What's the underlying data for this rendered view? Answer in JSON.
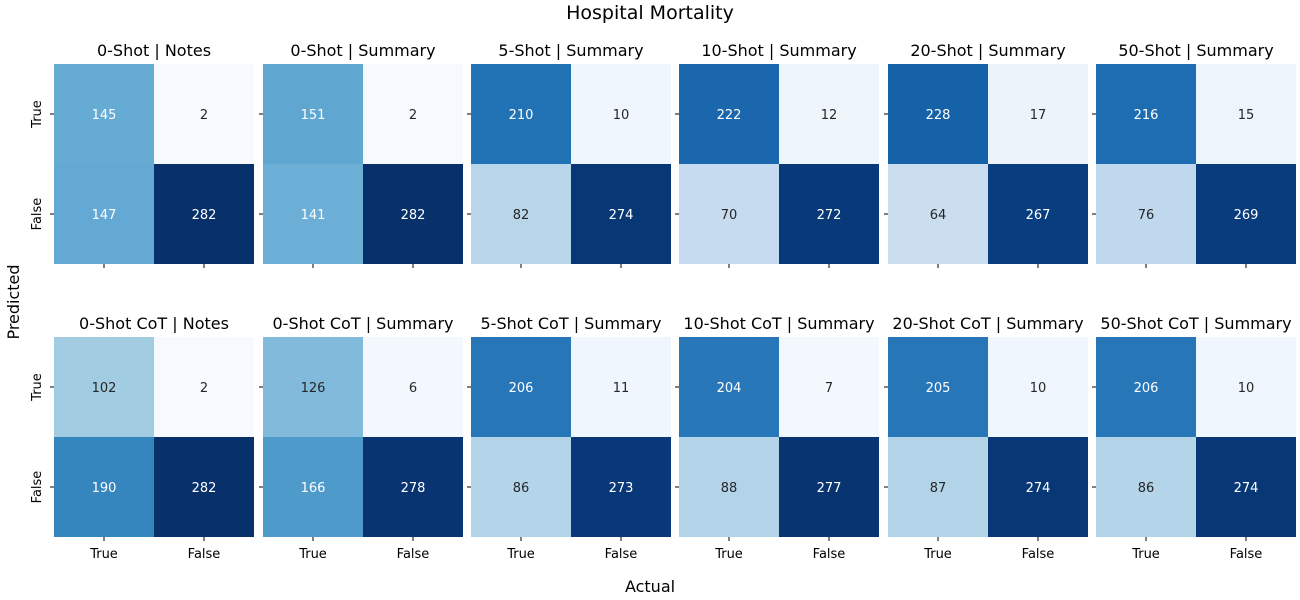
{
  "chart_data": {
    "type": "heatmap",
    "title": "Hospital Mortality",
    "xlabel": "Actual",
    "ylabel": "Predicted",
    "x_tick_labels": [
      "True",
      "False"
    ],
    "y_tick_labels": [
      "True",
      "False"
    ],
    "colormap": "Blues",
    "color_range": [
      0,
      282
    ],
    "grid": false,
    "legend": "none",
    "panels": [
      {
        "title": "0-Shot | Notes",
        "values": [
          [
            145,
            2
          ],
          [
            147,
            282
          ]
        ]
      },
      {
        "title": "0-Shot | Summary",
        "values": [
          [
            151,
            2
          ],
          [
            141,
            282
          ]
        ]
      },
      {
        "title": "5-Shot | Summary",
        "values": [
          [
            210,
            10
          ],
          [
            82,
            274
          ]
        ]
      },
      {
        "title": "10-Shot | Summary",
        "values": [
          [
            222,
            12
          ],
          [
            70,
            272
          ]
        ]
      },
      {
        "title": "20-Shot | Summary",
        "values": [
          [
            228,
            17
          ],
          [
            64,
            267
          ]
        ]
      },
      {
        "title": "50-Shot | Summary",
        "values": [
          [
            216,
            15
          ],
          [
            76,
            269
          ]
        ]
      },
      {
        "title": "0-Shot CoT | Notes",
        "values": [
          [
            102,
            2
          ],
          [
            190,
            282
          ]
        ]
      },
      {
        "title": "0-Shot CoT | Summary",
        "values": [
          [
            126,
            6
          ],
          [
            166,
            278
          ]
        ]
      },
      {
        "title": "5-Shot CoT | Summary",
        "values": [
          [
            206,
            11
          ],
          [
            86,
            273
          ]
        ]
      },
      {
        "title": "10-Shot CoT | Summary",
        "values": [
          [
            204,
            7
          ],
          [
            88,
            277
          ]
        ]
      },
      {
        "title": "20-Shot CoT | Summary",
        "values": [
          [
            205,
            10
          ],
          [
            87,
            274
          ]
        ]
      },
      {
        "title": "50-Shot CoT | Summary",
        "values": [
          [
            206,
            10
          ],
          [
            86,
            274
          ]
        ]
      }
    ]
  }
}
